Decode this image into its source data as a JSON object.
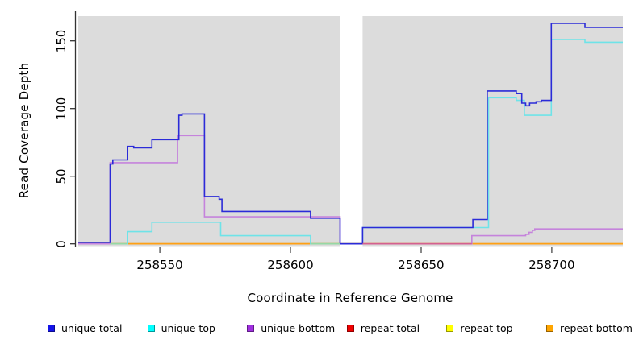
{
  "chart_data": {
    "type": "line",
    "subtype": "step-coverage",
    "title": "",
    "xlabel": "Coordinate in Reference Genome",
    "ylabel": "Read Coverage Depth",
    "x_ticks": [
      258550,
      258600,
      258650,
      258700
    ],
    "y_ticks": [
      0,
      50,
      100,
      150
    ],
    "xlim": [
      258518.8,
      258727.2
    ],
    "ylim": [
      0,
      168
    ],
    "gap": [
      258619.0,
      258627.6
    ],
    "grid": false,
    "plot_bg": "#dcdcdc",
    "legend_position": "bottom",
    "draw_order": [
      3,
      4,
      5,
      1,
      2,
      0
    ],
    "series": [
      {
        "name": "unique total",
        "color": "#2b2bd8",
        "points": [
          [
            258518.8,
            1
          ],
          [
            258531,
            59
          ],
          [
            258532,
            62
          ],
          [
            258537.7,
            72
          ],
          [
            258540,
            71
          ],
          [
            258547,
            77
          ],
          [
            258557.3,
            95
          ],
          [
            258558.5,
            96
          ],
          [
            258567.1,
            35
          ],
          [
            258572.7,
            33
          ],
          [
            258573.8,
            24
          ],
          [
            258607.7,
            19
          ],
          [
            258619,
            0
          ],
          [
            258627.6,
            12
          ],
          [
            258669.8,
            18
          ],
          [
            258675.3,
            113
          ],
          [
            258686.4,
            111
          ],
          [
            258688.5,
            104
          ],
          [
            258690,
            102
          ],
          [
            258691.5,
            104
          ],
          [
            258694,
            105
          ],
          [
            258696,
            106
          ],
          [
            258699.8,
            163
          ],
          [
            258712.7,
            160
          ]
        ]
      },
      {
        "name": "unique top",
        "color": "#6ee3e8",
        "points": [
          [
            258518.8,
            0
          ],
          [
            258537.7,
            9
          ],
          [
            258547,
            16
          ],
          [
            258573.3,
            6
          ],
          [
            258607.7,
            0
          ],
          [
            258627.6,
            12
          ],
          [
            258675.8,
            108
          ],
          [
            258686.4,
            106
          ],
          [
            258689.5,
            95
          ],
          [
            258699.8,
            151
          ],
          [
            258712.7,
            149
          ]
        ]
      },
      {
        "name": "unique bottom",
        "color": "#c583dc",
        "points": [
          [
            258518.8,
            0
          ],
          [
            258531,
            60
          ],
          [
            258556.8,
            80
          ],
          [
            258567.1,
            20
          ],
          [
            258619,
            0
          ],
          [
            258669.4,
            6
          ],
          [
            258690,
            7
          ],
          [
            258691.3,
            8.5
          ],
          [
            258692.6,
            10
          ],
          [
            258693.5,
            11
          ]
        ]
      },
      {
        "name": "repeat total",
        "color": "#e02020",
        "points": [
          [
            258518.8,
            0
          ]
        ]
      },
      {
        "name": "repeat top",
        "color": "#f2f200",
        "points": [
          [
            258518.8,
            0
          ]
        ]
      },
      {
        "name": "repeat bottom",
        "color": "#ffa014",
        "points": [
          [
            258518.8,
            0
          ]
        ]
      }
    ],
    "baseline_overlays": [
      {
        "x1": 258531,
        "x2": 258537.7,
        "color": "#96d8a4"
      },
      {
        "x1": 258607.7,
        "x2": 258619,
        "color": "#96d8a4"
      },
      {
        "x1": 258627.6,
        "x2": 258669.4,
        "color": "#d4608f"
      }
    ],
    "legend": [
      {
        "label": "unique total",
        "color": "#1414e8"
      },
      {
        "label": "unique top",
        "color": "#00ffff"
      },
      {
        "label": "unique bottom",
        "color": "#a02fe0"
      },
      {
        "label": "repeat total",
        "color": "#f00000"
      },
      {
        "label": "repeat top",
        "color": "#ffff00"
      },
      {
        "label": "repeat bottom",
        "color": "#ffa500"
      }
    ]
  }
}
